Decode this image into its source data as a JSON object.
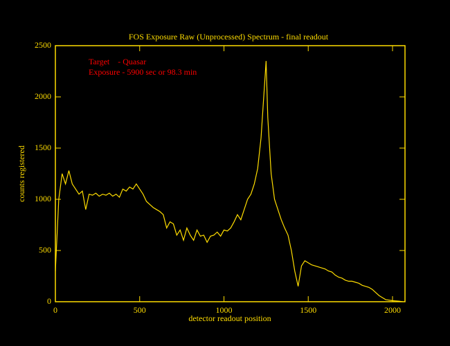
{
  "chart_data": {
    "type": "line",
    "title": "FOS Exposure Raw (Unprocessed) Spectrum - final readout",
    "x_label": "detector readout position",
    "y_label": "counts registered",
    "annotations": [
      "Target    - Quasar",
      "Exposure - 5900 sec or 98.3 min"
    ],
    "annotation_color": "#ff0000",
    "axis_color": "#ffdd00",
    "color": "#ffdd00",
    "x": [
      0,
      20,
      40,
      60,
      80,
      100,
      120,
      140,
      160,
      180,
      200,
      220,
      240,
      260,
      280,
      300,
      320,
      340,
      360,
      380,
      400,
      420,
      440,
      460,
      480,
      500,
      520,
      540,
      560,
      580,
      600,
      620,
      640,
      660,
      680,
      700,
      720,
      740,
      760,
      780,
      800,
      820,
      840,
      860,
      880,
      900,
      920,
      940,
      960,
      980,
      1000,
      1020,
      1040,
      1060,
      1080,
      1100,
      1120,
      1140,
      1160,
      1180,
      1200,
      1220,
      1240,
      1250,
      1260,
      1280,
      1300,
      1320,
      1340,
      1360,
      1380,
      1400,
      1420,
      1440,
      1460,
      1480,
      1500,
      1520,
      1540,
      1560,
      1580,
      1600,
      1620,
      1640,
      1660,
      1680,
      1700,
      1720,
      1740,
      1760,
      1780,
      1800,
      1820,
      1840,
      1860,
      1880,
      1900,
      1920,
      1940,
      1960,
      1980,
      2000,
      2020,
      2040,
      2060
    ],
    "values": [
      300,
      1000,
      1250,
      1150,
      1280,
      1150,
      1100,
      1050,
      1080,
      900,
      1050,
      1040,
      1060,
      1030,
      1050,
      1040,
      1060,
      1030,
      1050,
      1020,
      1100,
      1080,
      1120,
      1100,
      1150,
      1100,
      1050,
      980,
      950,
      920,
      900,
      880,
      850,
      720,
      780,
      760,
      650,
      700,
      600,
      720,
      650,
      600,
      700,
      640,
      650,
      580,
      640,
      650,
      680,
      640,
      700,
      690,
      720,
      780,
      850,
      800,
      900,
      1000,
      1050,
      1150,
      1300,
      1600,
      2100,
      2350,
      1800,
      1250,
      1000,
      900,
      800,
      720,
      650,
      500,
      300,
      150,
      350,
      400,
      380,
      360,
      350,
      340,
      330,
      320,
      300,
      290,
      260,
      240,
      230,
      210,
      200,
      200,
      190,
      180,
      160,
      150,
      140,
      120,
      90,
      60,
      40,
      20,
      15,
      10,
      8,
      5,
      0
    ],
    "xlim": [
      0,
      2074
    ],
    "ylim": [
      0,
      2500
    ],
    "xticks": [
      0,
      500,
      1000,
      1500,
      2000
    ],
    "yticks": [
      0,
      500,
      1000,
      1500,
      2000,
      2500
    ]
  }
}
